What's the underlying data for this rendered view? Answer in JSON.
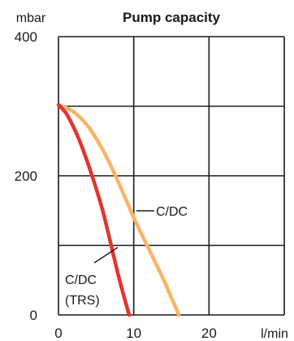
{
  "chart_data": {
    "type": "line",
    "title": "Pump capacity",
    "xlabel": "l/min",
    "ylabel": "mbar",
    "xlim": [
      0,
      30
    ],
    "ylim": [
      0,
      400
    ],
    "x_ticks": [
      0,
      10,
      20
    ],
    "y_ticks": [
      0,
      200,
      400
    ],
    "grid": true,
    "series": [
      {
        "name": "C/DC",
        "color": "#F8B466",
        "points": [
          [
            0,
            302
          ],
          [
            2,
            292
          ],
          [
            4,
            270
          ],
          [
            6,
            235
          ],
          [
            8,
            190
          ],
          [
            10,
            140
          ],
          [
            12,
            95
          ],
          [
            14,
            50
          ],
          [
            15,
            25
          ],
          [
            16,
            0
          ]
        ]
      },
      {
        "name": "C/DC (TRS)",
        "color": "#E3342E",
        "points": [
          [
            0,
            302
          ],
          [
            1,
            290
          ],
          [
            2,
            270
          ],
          [
            3,
            245
          ],
          [
            4,
            215
          ],
          [
            5,
            182
          ],
          [
            6,
            145
          ],
          [
            7,
            100
          ],
          [
            8,
            55
          ],
          [
            9,
            15
          ],
          [
            9.4,
            0
          ]
        ]
      }
    ],
    "annotations": [
      {
        "text": "C/DC",
        "series": "C/DC"
      },
      {
        "text": "C/DC",
        "series": "C/DC (TRS)"
      },
      {
        "text": "(TRS)",
        "series": "C/DC (TRS)"
      }
    ]
  }
}
